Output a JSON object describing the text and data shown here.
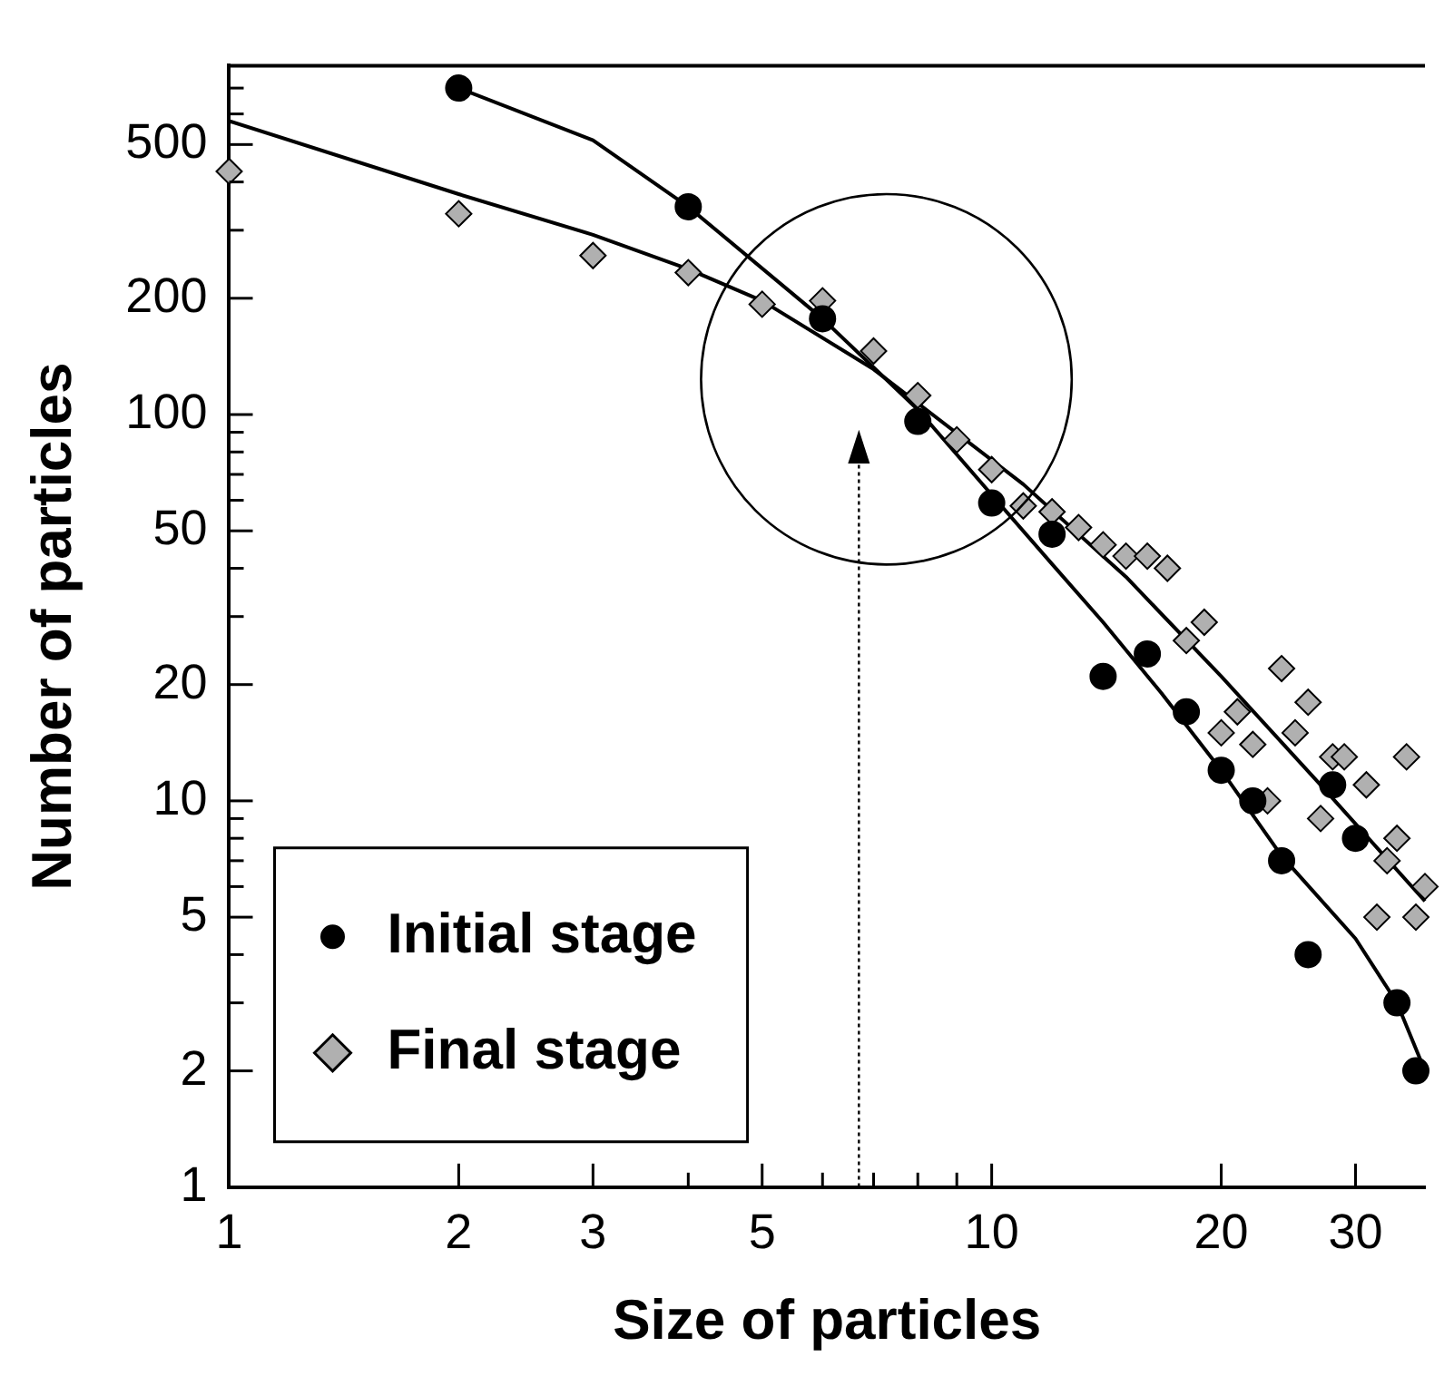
{
  "chart_data": {
    "type": "scatter",
    "xlabel": "Size of particles",
    "ylabel": "Number of particles",
    "log": "xy",
    "grid": false,
    "legend": "bottom left",
    "xlim": [
      1,
      37
    ],
    "xticks": [
      1,
      2,
      3,
      {
        "value": 4,
        "label": null
      },
      5,
      {
        "value": 6,
        "label": null
      },
      {
        "value": 7,
        "label": null
      },
      {
        "value": 8,
        "label": null
      },
      {
        "value": 9,
        "label": null
      },
      10,
      20,
      30
    ],
    "ylim": [
      1,
      800
    ],
    "yticks": [
      1,
      2,
      {
        "value": 3,
        "label": null
      },
      {
        "value": 4,
        "label": null
      },
      5,
      {
        "value": 6,
        "label": null
      },
      {
        "value": 7,
        "label": null
      },
      {
        "value": 8,
        "label": null
      },
      {
        "value": 9,
        "label": null
      },
      10,
      20,
      {
        "value": 30,
        "label": null
      },
      {
        "value": 40,
        "label": null
      },
      50,
      {
        "value": 60,
        "label": null
      },
      {
        "value": 70,
        "label": null
      },
      {
        "value": 80,
        "label": null
      },
      {
        "value": 90,
        "label": null
      },
      100,
      200,
      {
        "value": 300,
        "label": null
      },
      {
        "value": 400,
        "label": null
      },
      500,
      {
        "value": 600,
        "label": null
      },
      {
        "value": 700,
        "label": null
      }
    ],
    "series": [
      {
        "name": "Initial stage",
        "marker": "circle",
        "color": "#000000",
        "x": [
          2,
          4,
          6,
          8,
          10,
          12,
          14,
          16,
          18,
          20,
          22,
          24,
          26,
          28,
          30,
          34,
          36
        ],
        "values": [
          700,
          345,
          177,
          96,
          59,
          49,
          21,
          24,
          17,
          12,
          10,
          7,
          4,
          11,
          8,
          3,
          2
        ]
      },
      {
        "name": "Final stage",
        "marker": "diamond",
        "color": "#b0b0b0",
        "x": [
          1,
          2,
          3,
          4,
          5,
          6,
          7,
          8,
          9,
          10,
          11,
          12,
          13,
          14,
          15,
          16,
          17,
          18,
          19,
          20,
          21,
          22,
          23,
          24,
          25,
          26,
          27,
          28,
          29,
          31,
          32,
          33,
          34,
          35,
          36,
          37
        ],
        "values": [
          426,
          331,
          258,
          233,
          193,
          197,
          146,
          112,
          86,
          72,
          58,
          56,
          51,
          46,
          43,
          43,
          40,
          26,
          29,
          15,
          17,
          14,
          10,
          22,
          15,
          18,
          9,
          13,
          13,
          11,
          5,
          7,
          8,
          13,
          5,
          6
        ]
      },
      {
        "type": "line",
        "marker": "none",
        "color": "#000000",
        "x": [
          2,
          3,
          4,
          6,
          8,
          10,
          12,
          14,
          16.7,
          20,
          24,
          30,
          34,
          37
        ],
        "values": [
          700,
          513,
          345,
          177,
          103,
          62,
          41,
          29,
          19,
          12,
          7.2,
          4.4,
          3,
          2
        ]
      },
      {
        "type": "line",
        "marker": "none",
        "color": "#000000",
        "x": [
          1,
          2,
          3,
          4,
          5,
          7,
          11,
          15,
          20,
          27,
          37
        ],
        "values": [
          575,
          372,
          292,
          238,
          197,
          131,
          66,
          38,
          21,
          11,
          5.5
        ]
      }
    ]
  }
}
